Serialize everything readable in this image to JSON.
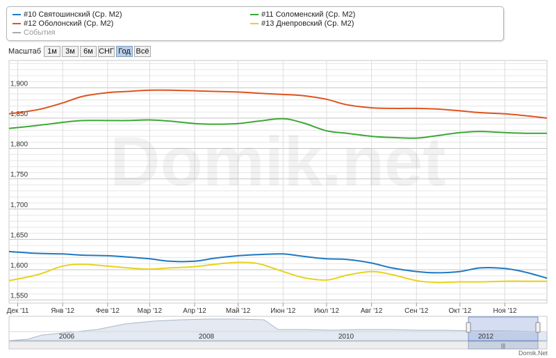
{
  "legend": {
    "items": [
      {
        "label": "#10 Святошинский (Ср. М2)",
        "color": "#1f78c1"
      },
      {
        "label": "#11 Соломенский (Ср. М2)",
        "color": "#3aa832"
      },
      {
        "label": "#12 Оболонский (Ср. М2)",
        "color": "#e0521e"
      },
      {
        "label": "#13 Днепровский (Ср. М2)",
        "color": "#e8d21a"
      }
    ],
    "events_label": "События",
    "events_color": "#aaaaaa"
  },
  "toolbar": {
    "scale_label": "Масштаб",
    "buttons": [
      "1м",
      "3м",
      "6м",
      "СНГ",
      "Год",
      "Всё"
    ],
    "active": "Год"
  },
  "watermark": "Domik.net",
  "credit": "Domik.Net",
  "chart_data": {
    "type": "line",
    "x_ticks": [
      "Дек '11",
      "Янв '12",
      "Фев '12",
      "Мар '12",
      "Апр '12",
      "Май '12",
      "Июн '12",
      "Июл '12",
      "Авг '12",
      "Сен '12",
      "Окт '12",
      "Ноя '12"
    ],
    "y_ticks": [
      "1,550",
      "1,600",
      "1,650",
      "1,700",
      "1,750",
      "1,800",
      "1,850",
      "1,900"
    ],
    "ylim": [
      1545,
      1945
    ],
    "x_range": [
      "2011-11-25",
      "2012-11-30"
    ],
    "grid": true,
    "series": [
      {
        "name": "#10 Святошинский (Ср. М2)",
        "color": "#1f78c1",
        "x": [
          "2011-11-25",
          "2011-12-15",
          "2012-01-01",
          "2012-01-15",
          "2012-02-01",
          "2012-02-15",
          "2012-03-01",
          "2012-03-15",
          "2012-04-01",
          "2012-04-15",
          "2012-05-01",
          "2012-05-15",
          "2012-06-01",
          "2012-06-15",
          "2012-07-01",
          "2012-07-15",
          "2012-08-01",
          "2012-08-15",
          "2012-09-01",
          "2012-09-15",
          "2012-10-01",
          "2012-10-15",
          "2012-11-01",
          "2012-11-15",
          "2012-11-30"
        ],
        "values": [
          1630,
          1627,
          1626,
          1624,
          1623,
          1621,
          1618,
          1614,
          1614,
          1619,
          1623,
          1625,
          1626,
          1622,
          1618,
          1617,
          1611,
          1603,
          1597,
          1595,
          1597,
          1603,
          1602,
          1596,
          1586
        ]
      },
      {
        "name": "#11 Соломенский (Ср. М2)",
        "color": "#3aa832",
        "x": [
          "2011-11-25",
          "2011-12-15",
          "2012-01-01",
          "2012-01-15",
          "2012-02-01",
          "2012-02-15",
          "2012-03-01",
          "2012-03-15",
          "2012-04-01",
          "2012-04-15",
          "2012-05-01",
          "2012-05-15",
          "2012-06-01",
          "2012-06-15",
          "2012-07-01",
          "2012-07-15",
          "2012-08-01",
          "2012-08-15",
          "2012-09-01",
          "2012-09-15",
          "2012-10-01",
          "2012-10-15",
          "2012-11-01",
          "2012-11-15",
          "2012-11-30"
        ],
        "values": [
          1833,
          1838,
          1843,
          1846,
          1846,
          1846,
          1847,
          1845,
          1841,
          1840,
          1841,
          1845,
          1849,
          1842,
          1829,
          1825,
          1820,
          1818,
          1817,
          1821,
          1826,
          1828,
          1826,
          1825,
          1825
        ]
      },
      {
        "name": "#12 Оболонский (Ср. М2)",
        "color": "#e0521e",
        "x": [
          "2011-11-25",
          "2011-12-15",
          "2012-01-01",
          "2012-01-15",
          "2012-02-01",
          "2012-02-15",
          "2012-03-01",
          "2012-03-15",
          "2012-04-01",
          "2012-04-15",
          "2012-05-01",
          "2012-05-15",
          "2012-06-01",
          "2012-06-15",
          "2012-07-01",
          "2012-07-15",
          "2012-08-01",
          "2012-08-15",
          "2012-09-01",
          "2012-09-15",
          "2012-10-01",
          "2012-10-15",
          "2012-11-01",
          "2012-11-15",
          "2012-11-30"
        ],
        "values": [
          1857,
          1864,
          1875,
          1886,
          1892,
          1894,
          1896,
          1896,
          1895,
          1894,
          1893,
          1891,
          1889,
          1887,
          1881,
          1872,
          1867,
          1866,
          1866,
          1865,
          1862,
          1859,
          1857,
          1854,
          1850
        ]
      },
      {
        "name": "#13 Днепровский (Ср. М2)",
        "color": "#e8d21a",
        "x": [
          "2011-11-25",
          "2011-12-15",
          "2012-01-01",
          "2012-01-15",
          "2012-02-01",
          "2012-02-15",
          "2012-03-01",
          "2012-03-15",
          "2012-04-01",
          "2012-04-15",
          "2012-05-01",
          "2012-05-15",
          "2012-06-01",
          "2012-06-15",
          "2012-07-01",
          "2012-07-15",
          "2012-08-01",
          "2012-08-15",
          "2012-09-01",
          "2012-09-15",
          "2012-10-01",
          "2012-10-15",
          "2012-11-01",
          "2012-11-15",
          "2012-11-30"
        ],
        "values": [
          1582,
          1592,
          1606,
          1609,
          1606,
          1603,
          1601,
          1603,
          1605,
          1609,
          1612,
          1610,
          1597,
          1587,
          1583,
          1591,
          1597,
          1592,
          1582,
          1579,
          1580,
          1580,
          1581,
          1581,
          1581
        ]
      }
    ]
  },
  "navigator": {
    "year_labels": [
      "2006",
      "2008",
      "2010",
      "2012"
    ],
    "selected_label": "2012",
    "grip": "|||"
  }
}
